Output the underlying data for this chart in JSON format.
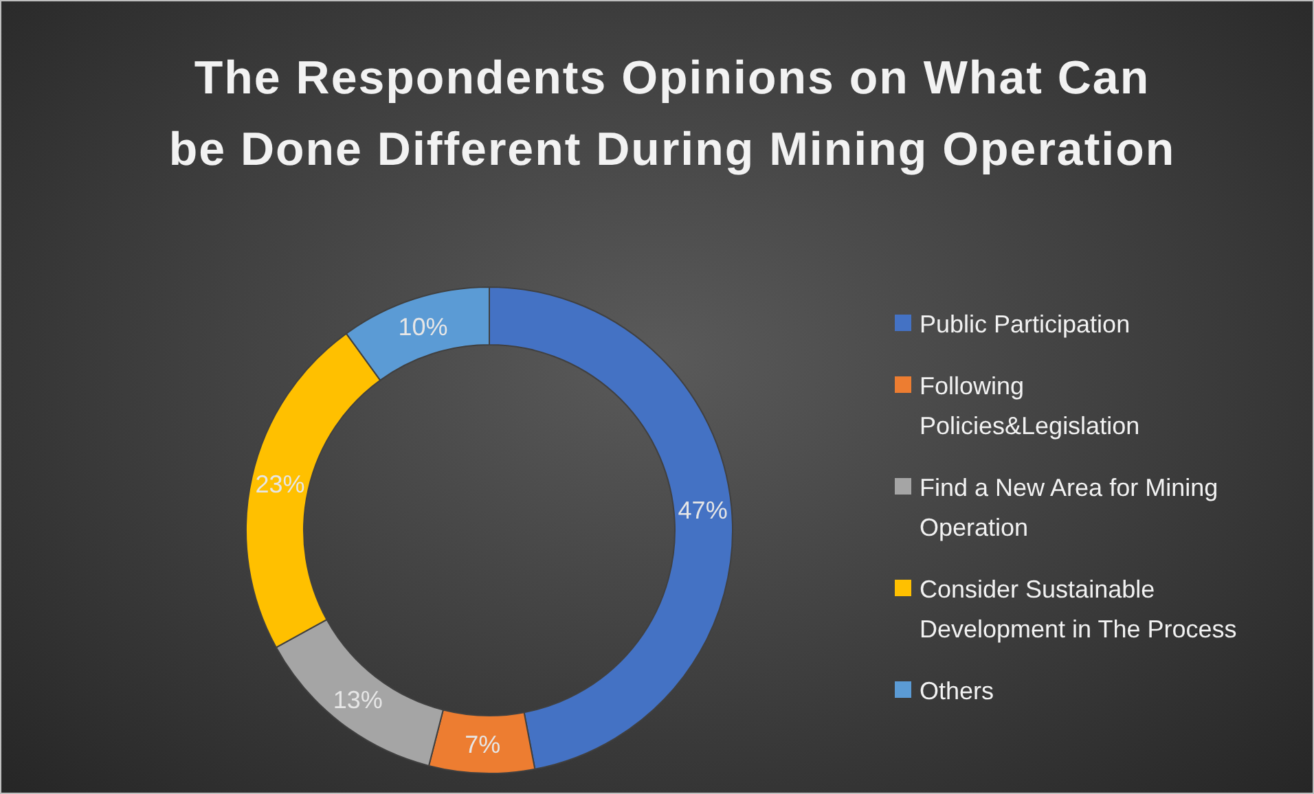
{
  "chart_data": {
    "type": "donut",
    "title": "The Respondents Opinions on What Can be Done Different During Mining Operation",
    "categories": [
      "Public Participation",
      "Following Policies&Legislation",
      "Find a New Area for Mining Operation",
      "Consider Sustainable Development in The Process",
      "Others"
    ],
    "values": [
      47,
      7,
      13,
      23,
      10
    ],
    "colors": [
      "#4472c4",
      "#ed7d31",
      "#a5a5a5",
      "#ffc000",
      "#5b9bd5"
    ],
    "value_labels": [
      "47%",
      "7%",
      "13%",
      "23%",
      "10%"
    ],
    "legend": "right"
  }
}
